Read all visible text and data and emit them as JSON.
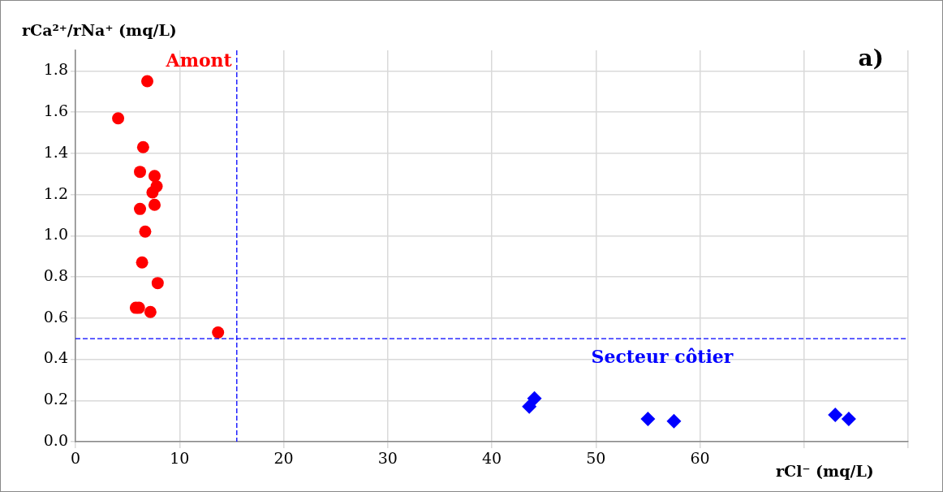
{
  "chart_data": {
    "type": "scatter",
    "xlabel": "rCl⁻ (mq/L)",
    "ylabel": "rCa²⁺/rNa⁺ (mq/L)",
    "xlim": [
      0,
      80
    ],
    "xticks": [
      0,
      10,
      20,
      30,
      40,
      50,
      60,
      {
        "value": 70,
        "label": null
      },
      {
        "value": 80,
        "label": null
      }
    ],
    "ylim": [
      0,
      1.9
    ],
    "yticks": [
      {
        "value": 0,
        "label": "0.0"
      },
      {
        "value": 0.2,
        "label": "0.2"
      },
      {
        "value": 0.4,
        "label": "0.4"
      },
      {
        "value": 0.6,
        "label": "0.6"
      },
      {
        "value": 0.8,
        "label": "0.8"
      },
      {
        "value": 1.0,
        "label": "1.0"
      },
      {
        "value": 1.2,
        "label": "1.2"
      },
      {
        "value": 1.4,
        "label": "1.4"
      },
      {
        "value": 1.6,
        "label": "1.6"
      },
      {
        "value": 1.8,
        "label": "1.8"
      }
    ],
    "grid": true,
    "legend": false,
    "series": [
      {
        "color": "#ff0000",
        "marker": "circle",
        "x": [
          6.9,
          4.1,
          6.5,
          6.2,
          7.6,
          7.8,
          7.4,
          7.6,
          6.2,
          6.7,
          6.4,
          7.9,
          5.8,
          6.1,
          7.2,
          13.7
        ],
        "values": [
          1.75,
          1.57,
          1.43,
          1.31,
          1.29,
          1.24,
          1.21,
          1.15,
          1.13,
          1.02,
          0.87,
          0.77,
          0.65,
          0.65,
          0.63,
          0.53
        ]
      },
      {
        "color": "#0000ff",
        "marker": "diamond",
        "x": [
          43.6,
          44.1,
          55.0,
          57.5,
          73.0,
          74.3
        ],
        "values": [
          0.17,
          0.21,
          0.11,
          0.1,
          0.13,
          0.11
        ]
      }
    ],
    "ref_lines": [
      {
        "axis": "x",
        "value": 15.5,
        "color": "#0000ff",
        "line_style": "dashed"
      },
      {
        "axis": "y",
        "value": 0.5,
        "color": "#0000ff",
        "line_style": "dashed"
      }
    ],
    "annotations": [
      "Amont",
      "Secteur côtier",
      "a)"
    ]
  }
}
